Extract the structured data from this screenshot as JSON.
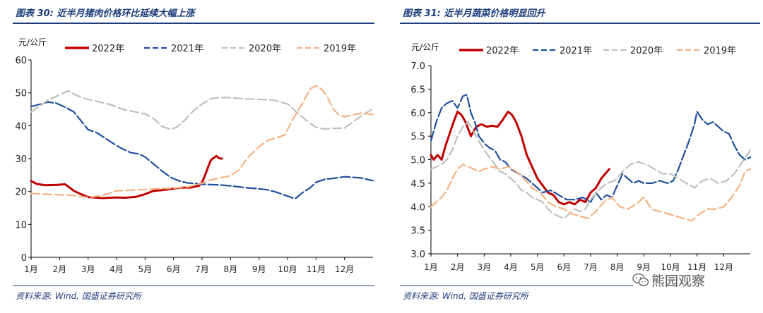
{
  "page": {
    "watermark_text": "熊园观察",
    "watermark_icon": "wechat-icon"
  },
  "colors": {
    "title": "#1d3c7a",
    "series_2022": "#c00000",
    "series_2021": "#1f4e9e",
    "series_2020": "#bfbfbf",
    "series_2019": "#f4b183"
  },
  "left_panel": {
    "title": "图表 30:  近半月猪肉价格环比延续大幅上涨",
    "source": "资料来源:  Wind,  国盛证券研究所"
  },
  "right_panel": {
    "title": "图表 31:  近半月蔬菜价格明显回升",
    "source": "资料来源:  Wind,  国盛证券研究所"
  },
  "chart_data": [
    {
      "type": "line",
      "title": "近半月猪肉价格环比延续大幅上涨",
      "ylabel": "元/公斤",
      "xlabel": "",
      "xlim": [
        1,
        13
      ],
      "ylim": [
        0,
        60
      ],
      "yticks": [
        "0",
        "10",
        "20",
        "30",
        "40",
        "50",
        "60"
      ],
      "categories": [
        "1月",
        "2月",
        "3月",
        "4月",
        "5月",
        "6月",
        "7月",
        "8月",
        "9月",
        "10月",
        "11月",
        "12月"
      ],
      "legend": [
        "2022年",
        "2021年",
        "2020年",
        "2019年"
      ],
      "legend_position": "top",
      "series": [
        {
          "name": "2022年",
          "style": "solid",
          "color": "#c00000",
          "x": [
            1.0,
            1.2,
            1.5,
            1.9,
            2.2,
            2.5,
            2.8,
            3.0,
            3.5,
            4.0,
            4.3,
            4.7,
            5.0,
            5.3,
            5.6,
            6.0,
            6.3,
            6.6,
            6.9,
            7.0,
            7.1,
            7.2,
            7.3,
            7.4,
            7.5,
            7.6,
            7.7
          ],
          "y": [
            23.2,
            22.3,
            21.9,
            22.0,
            22.2,
            20.2,
            19.0,
            18.3,
            18.0,
            18.2,
            18.1,
            18.4,
            19.2,
            20.2,
            20.4,
            20.9,
            21.2,
            21.2,
            21.8,
            22.8,
            24.8,
            27.2,
            29.4,
            30.2,
            30.8,
            30.1,
            30.0
          ]
        },
        {
          "name": "2021年",
          "style": "dashed",
          "color": "#1f4e9e",
          "x": [
            1.0,
            1.3,
            1.6,
            1.9,
            2.2,
            2.5,
            2.8,
            3.0,
            3.3,
            3.6,
            3.9,
            4.2,
            4.5,
            4.8,
            5.0,
            5.3,
            5.6,
            5.9,
            6.2,
            6.5,
            6.8,
            7.0,
            7.3,
            7.6,
            8.0,
            8.3,
            8.6,
            9.0,
            9.3,
            9.6,
            9.9,
            10.2,
            10.3,
            10.5,
            10.8,
            11.0,
            11.3,
            11.6,
            12.0,
            12.3,
            12.6,
            13.0
          ],
          "y": [
            45.8,
            46.5,
            47.2,
            46.8,
            45.6,
            44.2,
            41.0,
            38.8,
            37.9,
            36.2,
            34.5,
            33.0,
            31.8,
            31.4,
            30.5,
            28.4,
            26.2,
            24.3,
            23.2,
            22.6,
            22.4,
            22.2,
            22.1,
            22.0,
            21.7,
            21.4,
            21.1,
            20.8,
            20.5,
            19.8,
            18.9,
            18.0,
            18.0,
            19.5,
            21.2,
            22.8,
            23.7,
            24.0,
            24.5,
            24.3,
            24.1,
            23.3
          ]
        },
        {
          "name": "2020年",
          "style": "dashed",
          "color": "#bfbfbf",
          "x": [
            1.0,
            1.3,
            1.6,
            2.0,
            2.3,
            2.6,
            3.0,
            3.4,
            3.8,
            4.2,
            4.6,
            5.0,
            5.3,
            5.6,
            5.9,
            6.1,
            6.4,
            6.7,
            7.0,
            7.3,
            7.6,
            8.0,
            8.5,
            9.0,
            9.5,
            10.0,
            10.3,
            10.6,
            11.0,
            11.3,
            11.6,
            12.0,
            12.3,
            12.6,
            13.0
          ],
          "y": [
            44.2,
            46.0,
            47.8,
            49.4,
            50.6,
            49.2,
            48.0,
            47.2,
            46.4,
            45.0,
            44.3,
            43.6,
            42.2,
            39.8,
            38.9,
            39.5,
            41.7,
            44.6,
            46.6,
            48.2,
            48.6,
            48.5,
            48.2,
            48.0,
            47.8,
            46.6,
            44.3,
            42.0,
            39.5,
            39.0,
            39.2,
            39.3,
            41.2,
            43.1,
            45.2
          ]
        },
        {
          "name": "2019年",
          "style": "dashed",
          "color": "#f4b183",
          "x": [
            1.0,
            1.5,
            2.0,
            2.5,
            3.0,
            3.5,
            4.0,
            4.5,
            5.0,
            5.5,
            6.0,
            6.5,
            7.0,
            7.3,
            7.6,
            8.0,
            8.3,
            8.6,
            9.0,
            9.3,
            9.6,
            9.9,
            10.2,
            10.5,
            10.8,
            11.0,
            11.2,
            11.4,
            11.6,
            11.8,
            12.0,
            12.3,
            12.6,
            13.0
          ],
          "y": [
            19.4,
            19.2,
            19.0,
            18.8,
            18.2,
            18.8,
            20.2,
            20.4,
            20.6,
            20.9,
            21.0,
            21.4,
            22.5,
            23.5,
            24.1,
            24.8,
            26.6,
            30.3,
            33.6,
            35.5,
            36.3,
            37.2,
            42.2,
            46.5,
            51.2,
            52.2,
            51.1,
            48.8,
            45.1,
            43.3,
            42.7,
            43.3,
            43.8,
            43.4
          ]
        }
      ]
    },
    {
      "type": "line",
      "title": "近半月蔬菜价格明显回升",
      "ylabel": "元/公斤",
      "xlabel": "",
      "xlim": [
        1,
        13
      ],
      "ylim": [
        3.0,
        7.0
      ],
      "yticks": [
        "3.0",
        "3.5",
        "4.0",
        "4.5",
        "5.0",
        "5.5",
        "6.0",
        "6.5",
        "7.0"
      ],
      "categories": [
        "1月",
        "2月",
        "3月",
        "4月",
        "5月",
        "6月",
        "7月",
        "8月",
        "9月",
        "10月",
        "11月",
        "12月"
      ],
      "legend": [
        "2022年",
        "2021年",
        "2020年",
        "2019年"
      ],
      "legend_position": "top",
      "series": [
        {
          "name": "2022年",
          "style": "solid",
          "color": "#c00000",
          "x": [
            1.0,
            1.1,
            1.25,
            1.4,
            1.55,
            1.7,
            1.85,
            2.0,
            2.15,
            2.3,
            2.5,
            2.7,
            2.9,
            3.1,
            3.3,
            3.5,
            3.7,
            3.9,
            4.05,
            4.2,
            4.4,
            4.6,
            4.8,
            5.0,
            5.2,
            5.4,
            5.6,
            5.8,
            6.0,
            6.2,
            6.4,
            6.6,
            6.8,
            7.0,
            7.2,
            7.4,
            7.55,
            7.7
          ],
          "y": [
            5.1,
            5.0,
            5.1,
            5.0,
            5.3,
            5.55,
            5.8,
            6.02,
            5.95,
            5.8,
            5.5,
            5.7,
            5.75,
            5.7,
            5.72,
            5.7,
            5.85,
            6.02,
            5.95,
            5.8,
            5.5,
            5.1,
            4.85,
            4.6,
            4.45,
            4.3,
            4.25,
            4.1,
            4.05,
            4.1,
            4.05,
            4.15,
            4.1,
            4.3,
            4.4,
            4.6,
            4.7,
            4.8
          ]
        },
        {
          "name": "2021年",
          "style": "dashed",
          "color": "#1f4e9e",
          "x": [
            1.0,
            1.2,
            1.4,
            1.6,
            1.8,
            2.0,
            2.2,
            2.35,
            2.5,
            2.65,
            2.8,
            3.0,
            3.2,
            3.4,
            3.6,
            3.8,
            4.0,
            4.3,
            4.6,
            4.9,
            5.2,
            5.5,
            5.8,
            6.1,
            6.4,
            6.7,
            7.0,
            7.2,
            7.4,
            7.6,
            7.8,
            8.0,
            8.2,
            8.4,
            8.6,
            8.8,
            9.0,
            9.3,
            9.6,
            9.9,
            10.1,
            10.3,
            10.5,
            10.7,
            10.9,
            11.0,
            11.2,
            11.4,
            11.6,
            11.8,
            12.0,
            12.2,
            12.4,
            12.6,
            12.8,
            13.0
          ],
          "y": [
            5.4,
            5.8,
            6.1,
            6.2,
            6.25,
            6.1,
            6.35,
            6.38,
            6.0,
            5.8,
            5.5,
            5.35,
            5.25,
            5.2,
            5.0,
            4.95,
            4.8,
            4.7,
            4.6,
            4.45,
            4.3,
            4.35,
            4.25,
            4.15,
            4.15,
            4.2,
            4.1,
            4.3,
            4.15,
            4.25,
            4.2,
            4.45,
            4.7,
            4.6,
            4.5,
            4.55,
            4.5,
            4.5,
            4.55,
            4.5,
            4.55,
            4.8,
            5.1,
            5.4,
            5.75,
            6.02,
            5.85,
            5.75,
            5.8,
            5.7,
            5.6,
            5.55,
            5.3,
            5.1,
            5.0,
            5.05
          ]
        },
        {
          "name": "2020年",
          "style": "dashed",
          "color": "#bfbfbf",
          "x": [
            1.0,
            1.2,
            1.4,
            1.6,
            1.8,
            2.0,
            2.2,
            2.4,
            2.6,
            2.8,
            3.0,
            3.2,
            3.4,
            3.6,
            3.8,
            4.0,
            4.2,
            4.4,
            4.6,
            4.8,
            5.0,
            5.2,
            5.4,
            5.6,
            5.8,
            6.0,
            6.2,
            6.4,
            6.6,
            6.8,
            7.0,
            7.3,
            7.6,
            7.9,
            8.2,
            8.5,
            8.8,
            9.1,
            9.4,
            9.7,
            10.0,
            10.3,
            10.6,
            10.9,
            11.2,
            11.5,
            11.8,
            12.1,
            12.4,
            12.7,
            13.0
          ],
          "y": [
            4.8,
            4.85,
            4.9,
            5.0,
            5.2,
            5.5,
            5.7,
            5.8,
            5.6,
            5.4,
            5.2,
            5.05,
            4.9,
            4.75,
            4.7,
            4.6,
            4.5,
            4.35,
            4.3,
            4.2,
            4.15,
            4.1,
            3.95,
            3.85,
            3.8,
            3.75,
            3.85,
            3.95,
            3.9,
            3.95,
            4.15,
            4.35,
            4.5,
            4.55,
            4.75,
            4.9,
            4.95,
            4.9,
            4.8,
            4.7,
            4.7,
            4.6,
            4.5,
            4.4,
            4.55,
            4.6,
            4.5,
            4.55,
            4.7,
            4.95,
            5.2
          ]
        },
        {
          "name": "2019年",
          "style": "dashed",
          "color": "#f4b183",
          "x": [
            1.0,
            1.2,
            1.4,
            1.6,
            1.8,
            2.0,
            2.2,
            2.4,
            2.6,
            2.8,
            3.0,
            3.3,
            3.6,
            3.9,
            4.2,
            4.5,
            4.8,
            5.1,
            5.4,
            5.7,
            6.0,
            6.3,
            6.6,
            6.9,
            7.2,
            7.5,
            7.8,
            8.1,
            8.4,
            8.7,
            9.0,
            9.3,
            9.6,
            9.9,
            10.2,
            10.5,
            10.8,
            11.1,
            11.4,
            11.7,
            12.0,
            12.3,
            12.6,
            12.8,
            13.0
          ],
          "y": [
            4.0,
            4.1,
            4.2,
            4.35,
            4.6,
            4.8,
            4.9,
            4.85,
            4.8,
            4.75,
            4.8,
            4.85,
            4.8,
            4.85,
            4.75,
            4.6,
            4.4,
            4.3,
            4.1,
            4.0,
            3.95,
            3.85,
            3.8,
            3.75,
            3.9,
            4.1,
            4.2,
            4.0,
            3.95,
            4.05,
            4.2,
            3.95,
            3.9,
            3.85,
            3.8,
            3.75,
            3.7,
            3.85,
            3.95,
            3.95,
            4.0,
            4.2,
            4.45,
            4.75,
            4.8
          ]
        }
      ]
    }
  ]
}
